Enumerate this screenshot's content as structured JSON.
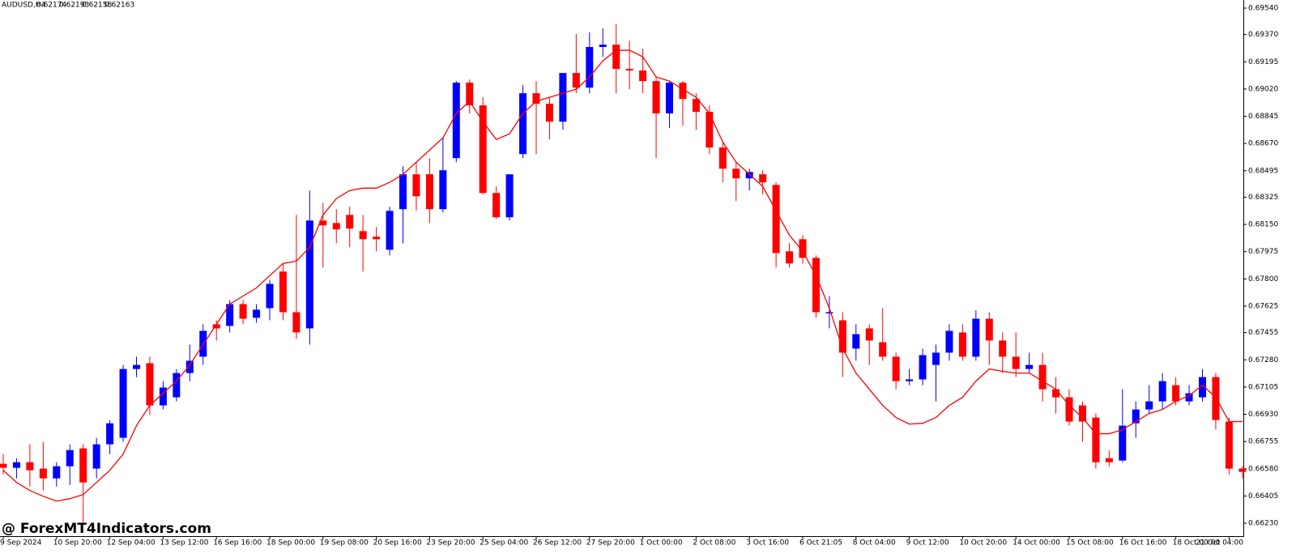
{
  "header": {
    "symbol": "AUDUSD,H4",
    "quote": [
      0.62174,
      0.62193,
      0.62158,
      0.62163
    ]
  },
  "watermark": "@ ForexMT4Indicators.com",
  "chart_data": {
    "type": "candlestick",
    "up_color": "#0000ff",
    "down_color": "#ff0000",
    "categories": [
      "9 Sep 2024",
      null,
      null,
      null,
      "10 Sep 20:00",
      null,
      null,
      null,
      "12 Sep 04:00",
      null,
      null,
      null,
      "13 Sep 12:00",
      null,
      null,
      null,
      "16 Sep 16:00",
      null,
      null,
      null,
      "18 Sep 00:00",
      null,
      null,
      null,
      "19 Sep 08:00",
      null,
      null,
      null,
      "20 Sep 16:00",
      null,
      null,
      null,
      "23 Sep 20:00",
      null,
      null,
      null,
      "25 Sep 04:00",
      null,
      null,
      null,
      "26 Sep 12:00",
      null,
      null,
      null,
      "27 Sep 20:00",
      null,
      null,
      null,
      "1 Oct 00:00",
      null,
      null,
      null,
      "2 Oct 08:00",
      null,
      null,
      null,
      "3 Oct 16:00",
      null,
      null,
      null,
      "6 Oct 21:05",
      null,
      null,
      null,
      "8 Oct 04:00",
      null,
      null,
      null,
      "9 Oct 12:00",
      null,
      null,
      null,
      "10 Oct 20:00",
      null,
      null,
      null,
      "14 Oct 00:00",
      null,
      null,
      null,
      "15 Oct 08:00",
      null,
      null,
      null,
      "16 Oct 16:00",
      null,
      null,
      null,
      "18 Oct 00:00",
      null,
      null,
      null,
      "21 Oct 04:00",
      null
    ],
    "open": [
      0.66612,
      0.66586,
      0.66622,
      0.66581,
      0.66518,
      0.66596,
      0.66711,
      0.66581,
      0.66737,
      0.66779,
      0.67221,
      0.67258,
      0.66987,
      0.67039,
      0.67195,
      0.673,
      0.67508,
      0.67498,
      0.67638,
      0.6755,
      0.67612,
      0.67847,
      0.67586,
      0.67482,
      0.68175,
      0.68159,
      0.68211,
      0.68107,
      0.68071,
      0.67987,
      0.68248,
      0.68472,
      0.68472,
      0.68248,
      0.68576,
      0.69061,
      0.68915,
      0.68352,
      0.68196,
      0.68602,
      0.68993,
      0.68925,
      0.6881,
      0.69123,
      0.69029,
      0.6929,
      0.69305,
      0.69149,
      0.69139,
      0.69071,
      0.68863,
      0.69061,
      0.68956,
      0.68873,
      0.68644,
      0.68508,
      0.68446,
      0.68472,
      0.68404,
      0.67977,
      0.68055,
      0.67935,
      0.67586,
      0.67534,
      0.67352,
      0.67482,
      0.67393,
      0.673,
      0.67143,
      0.67154,
      0.67247,
      0.67326,
      0.67456,
      0.673,
      0.67544,
      0.67404,
      0.673,
      0.67221,
      0.67247,
      0.67091,
      0.67039,
      0.66987,
      0.66909,
      0.66648,
      0.66633,
      0.66872,
      0.66961,
      0.67013,
      0.67117,
      0.67013,
      0.67039,
      0.67169,
      0.66883,
      0.66581
    ],
    "high": [
      0.66674,
      0.66648,
      0.66737,
      0.66753,
      0.66622,
      0.66737,
      0.66737,
      0.66779,
      0.66893,
      0.67247,
      0.673,
      0.673,
      0.67143,
      0.67221,
      0.67378,
      0.67508,
      0.67534,
      0.67664,
      0.67664,
      0.67638,
      0.67795,
      0.67899,
      0.68211,
      0.68368,
      0.68289,
      0.68248,
      0.68263,
      0.68211,
      0.68133,
      0.68263,
      0.68524,
      0.6855,
      0.68576,
      0.68706,
      0.69071,
      0.69081,
      0.68967,
      0.68394,
      0.68472,
      0.69045,
      0.69071,
      0.68967,
      0.69123,
      0.69373,
      0.69384,
      0.6941,
      0.69436,
      0.69331,
      0.69279,
      0.69097,
      0.69071,
      0.69071,
      0.68993,
      0.68915,
      0.6868,
      0.6855,
      0.68508,
      0.68498,
      0.6842,
      0.68029,
      0.68081,
      0.67951,
      0.6769,
      0.67586,
      0.67508,
      0.67508,
      0.67612,
      0.67326,
      0.67221,
      0.67352,
      0.67378,
      0.67508,
      0.67508,
      0.67597,
      0.67586,
      0.67456,
      0.67456,
      0.67326,
      0.67326,
      0.67169,
      0.67091,
      0.67013,
      0.66935,
      0.667,
      0.67091,
      0.67013,
      0.67117,
      0.67195,
      0.67169,
      0.67117,
      0.67221,
      0.67195,
      0.66909,
      0.66596
    ],
    "low": [
      0.66544,
      0.66518,
      0.66466,
      0.6644,
      0.66466,
      0.66476,
      0.66232,
      0.66518,
      0.66674,
      0.66753,
      0.67169,
      0.66924,
      0.66961,
      0.67013,
      0.67143,
      0.67247,
      0.67404,
      0.67456,
      0.67508,
      0.67518,
      0.67534,
      0.67534,
      0.67414,
      0.67378,
      0.67873,
      0.68029,
      0.68003,
      0.67847,
      0.67977,
      0.67951,
      0.68029,
      0.68237,
      0.68159,
      0.68227,
      0.6855,
      0.68863,
      0.68342,
      0.68185,
      0.68175,
      0.68576,
      0.68602,
      0.68696,
      0.68758,
      0.68993,
      0.68993,
      0.69227,
      0.68993,
      0.69019,
      0.68993,
      0.68576,
      0.68769,
      0.68784,
      0.68758,
      0.68602,
      0.6842,
      0.683,
      0.68368,
      0.68342,
      0.67873,
      0.67873,
      0.67899,
      0.6755,
      0.67482,
      0.67169,
      0.67274,
      0.67247,
      0.67274,
      0.67091,
      0.67117,
      0.67117,
      0.67013,
      0.67274,
      0.67274,
      0.67274,
      0.67247,
      0.67195,
      0.67169,
      0.67195,
      0.67013,
      0.66935,
      0.66857,
      0.66753,
      0.66581,
      0.66596,
      0.66622,
      0.66779,
      0.66935,
      0.66961,
      0.66987,
      0.66987,
      0.67013,
      0.66831,
      0.66544,
      0.66518
    ],
    "close": [
      0.66586,
      0.66622,
      0.6657,
      0.66518,
      0.66596,
      0.667,
      0.66492,
      0.66737,
      0.66872,
      0.67221,
      0.67247,
      0.66987,
      0.67102,
      0.67195,
      0.67274,
      0.67466,
      0.67482,
      0.67638,
      0.67544,
      0.67602,
      0.67768,
      0.67586,
      0.67456,
      0.68175,
      0.68144,
      0.68118,
      0.68123,
      0.68055,
      0.68055,
      0.68237,
      0.68472,
      0.68331,
      0.68248,
      0.68498,
      0.69061,
      0.68915,
      0.68352,
      0.68196,
      0.68472,
      0.68993,
      0.68925,
      0.6881,
      0.69123,
      0.69029,
      0.6929,
      0.69305,
      0.69149,
      0.69139,
      0.69071,
      0.68863,
      0.69061,
      0.68956,
      0.68873,
      0.68644,
      0.68508,
      0.68446,
      0.68487,
      0.6842,
      0.67966,
      0.67899,
      0.67935,
      0.67586,
      0.67586,
      0.67326,
      0.67445,
      0.67404,
      0.673,
      0.67143,
      0.67154,
      0.6731,
      0.67326,
      0.67466,
      0.673,
      0.67544,
      0.67404,
      0.673,
      0.67221,
      0.67247,
      0.67091,
      0.67039,
      0.66883,
      0.66883,
      0.66622,
      0.66622,
      0.66857,
      0.66961,
      0.67013,
      0.67143,
      0.67013,
      0.67065,
      0.67169,
      0.66893,
      0.66581,
      0.6656
    ],
    "line": {
      "color": "#ff0000",
      "values": [
        0.6657,
        0.66492,
        0.6644,
        0.66403,
        0.66372,
        0.66388,
        0.66414,
        0.66492,
        0.6657,
        0.66674,
        0.66857,
        0.66987,
        0.67065,
        0.67143,
        0.67247,
        0.67378,
        0.67508,
        0.67638,
        0.6769,
        0.67742,
        0.67821,
        0.67899,
        0.67914,
        0.68003,
        0.68211,
        0.68316,
        0.68368,
        0.68383,
        0.68383,
        0.6842,
        0.68472,
        0.6855,
        0.68628,
        0.68706,
        0.68863,
        0.68941,
        0.6881,
        0.68696,
        0.68732,
        0.68863,
        0.68941,
        0.68967,
        0.68993,
        0.69019,
        0.69097,
        0.69201,
        0.69269,
        0.69269,
        0.69227,
        0.69097,
        0.69071,
        0.69019,
        0.68967,
        0.68863,
        0.6868,
        0.6855,
        0.68472,
        0.68394,
        0.68237,
        0.68081,
        0.67977,
        0.67821,
        0.67612,
        0.67352,
        0.67195,
        0.67091,
        0.66987,
        0.66909,
        0.66867,
        0.66872,
        0.66909,
        0.66987,
        0.67039,
        0.67143,
        0.67221,
        0.67206,
        0.67195,
        0.67195,
        0.67143,
        0.67091,
        0.66987,
        0.66909,
        0.66805,
        0.66805,
        0.66831,
        0.66883,
        0.66935,
        0.66961,
        0.67013,
        0.6705,
        0.67117,
        0.67039,
        0.66883,
        0.66883
      ]
    },
    "ylim": [
      0.66147,
      0.69592
    ],
    "yticks": [
      {
        "value": 0.6623,
        "label": "0.66230"
      },
      {
        "value": 0.66405,
        "label": "0.66405"
      },
      {
        "value": 0.6658,
        "label": "0.66580"
      },
      {
        "value": 0.66755,
        "label": "0.66755"
      },
      {
        "value": 0.6693,
        "label": "0.66930"
      },
      {
        "value": 0.67105,
        "label": "0.67105"
      },
      {
        "value": 0.6728,
        "label": "0.67280"
      },
      {
        "value": 0.67455,
        "label": "0.67455"
      },
      {
        "value": 0.67625,
        "label": "0.67625"
      },
      {
        "value": 0.678,
        "label": "0.67800"
      },
      {
        "value": 0.67975,
        "label": "0.67975"
      },
      {
        "value": 0.6815,
        "label": "0.68150"
      },
      {
        "value": 0.68325,
        "label": "0.68325"
      },
      {
        "value": 0.68495,
        "label": "0.68495"
      },
      {
        "value": 0.6867,
        "label": "0.68670"
      },
      {
        "value": 0.68845,
        "label": "0.68845"
      },
      {
        "value": 0.6902,
        "label": "0.69020"
      },
      {
        "value": 0.69195,
        "label": "0.69195"
      },
      {
        "value": 0.6937,
        "label": "0.69370"
      },
      {
        "value": 0.6954,
        "label": "0.69540"
      }
    ],
    "grid": false
  }
}
